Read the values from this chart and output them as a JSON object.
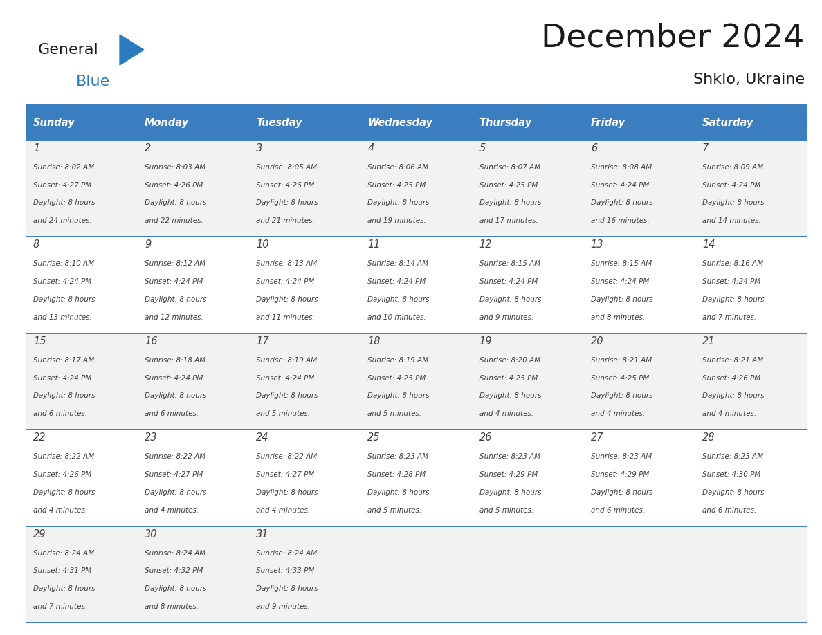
{
  "title": "December 2024",
  "subtitle": "Shklo, Ukraine",
  "header_color": "#3a7ebf",
  "header_text_color": "#ffffff",
  "background_color": "#ffffff",
  "cell_bg_even": "#f2f2f2",
  "cell_bg_odd": "#ffffff",
  "days_of_week": [
    "Sunday",
    "Monday",
    "Tuesday",
    "Wednesday",
    "Thursday",
    "Friday",
    "Saturday"
  ],
  "grid_line_color": "#3a7ebf",
  "text_color": "#404040",
  "calendar_data": [
    [
      {
        "day": 1,
        "sunrise": "8:02 AM",
        "sunset": "4:27 PM",
        "daylight_h": "8 hours",
        "daylight_m": "24 minutes"
      },
      {
        "day": 2,
        "sunrise": "8:03 AM",
        "sunset": "4:26 PM",
        "daylight_h": "8 hours",
        "daylight_m": "22 minutes"
      },
      {
        "day": 3,
        "sunrise": "8:05 AM",
        "sunset": "4:26 PM",
        "daylight_h": "8 hours",
        "daylight_m": "21 minutes"
      },
      {
        "day": 4,
        "sunrise": "8:06 AM",
        "sunset": "4:25 PM",
        "daylight_h": "8 hours",
        "daylight_m": "19 minutes"
      },
      {
        "day": 5,
        "sunrise": "8:07 AM",
        "sunset": "4:25 PM",
        "daylight_h": "8 hours",
        "daylight_m": "17 minutes"
      },
      {
        "day": 6,
        "sunrise": "8:08 AM",
        "sunset": "4:24 PM",
        "daylight_h": "8 hours",
        "daylight_m": "16 minutes"
      },
      {
        "day": 7,
        "sunrise": "8:09 AM",
        "sunset": "4:24 PM",
        "daylight_h": "8 hours",
        "daylight_m": "14 minutes"
      }
    ],
    [
      {
        "day": 8,
        "sunrise": "8:10 AM",
        "sunset": "4:24 PM",
        "daylight_h": "8 hours",
        "daylight_m": "13 minutes"
      },
      {
        "day": 9,
        "sunrise": "8:12 AM",
        "sunset": "4:24 PM",
        "daylight_h": "8 hours",
        "daylight_m": "12 minutes"
      },
      {
        "day": 10,
        "sunrise": "8:13 AM",
        "sunset": "4:24 PM",
        "daylight_h": "8 hours",
        "daylight_m": "11 minutes"
      },
      {
        "day": 11,
        "sunrise": "8:14 AM",
        "sunset": "4:24 PM",
        "daylight_h": "8 hours",
        "daylight_m": "10 minutes"
      },
      {
        "day": 12,
        "sunrise": "8:15 AM",
        "sunset": "4:24 PM",
        "daylight_h": "8 hours",
        "daylight_m": "9 minutes"
      },
      {
        "day": 13,
        "sunrise": "8:15 AM",
        "sunset": "4:24 PM",
        "daylight_h": "8 hours",
        "daylight_m": "8 minutes"
      },
      {
        "day": 14,
        "sunrise": "8:16 AM",
        "sunset": "4:24 PM",
        "daylight_h": "8 hours",
        "daylight_m": "7 minutes"
      }
    ],
    [
      {
        "day": 15,
        "sunrise": "8:17 AM",
        "sunset": "4:24 PM",
        "daylight_h": "8 hours",
        "daylight_m": "6 minutes"
      },
      {
        "day": 16,
        "sunrise": "8:18 AM",
        "sunset": "4:24 PM",
        "daylight_h": "8 hours",
        "daylight_m": "6 minutes"
      },
      {
        "day": 17,
        "sunrise": "8:19 AM",
        "sunset": "4:24 PM",
        "daylight_h": "8 hours",
        "daylight_m": "5 minutes"
      },
      {
        "day": 18,
        "sunrise": "8:19 AM",
        "sunset": "4:25 PM",
        "daylight_h": "8 hours",
        "daylight_m": "5 minutes"
      },
      {
        "day": 19,
        "sunrise": "8:20 AM",
        "sunset": "4:25 PM",
        "daylight_h": "8 hours",
        "daylight_m": "4 minutes"
      },
      {
        "day": 20,
        "sunrise": "8:21 AM",
        "sunset": "4:25 PM",
        "daylight_h": "8 hours",
        "daylight_m": "4 minutes"
      },
      {
        "day": 21,
        "sunrise": "8:21 AM",
        "sunset": "4:26 PM",
        "daylight_h": "8 hours",
        "daylight_m": "4 minutes"
      }
    ],
    [
      {
        "day": 22,
        "sunrise": "8:22 AM",
        "sunset": "4:26 PM",
        "daylight_h": "8 hours",
        "daylight_m": "4 minutes"
      },
      {
        "day": 23,
        "sunrise": "8:22 AM",
        "sunset": "4:27 PM",
        "daylight_h": "8 hours",
        "daylight_m": "4 minutes"
      },
      {
        "day": 24,
        "sunrise": "8:22 AM",
        "sunset": "4:27 PM",
        "daylight_h": "8 hours",
        "daylight_m": "4 minutes"
      },
      {
        "day": 25,
        "sunrise": "8:23 AM",
        "sunset": "4:28 PM",
        "daylight_h": "8 hours",
        "daylight_m": "5 minutes"
      },
      {
        "day": 26,
        "sunrise": "8:23 AM",
        "sunset": "4:29 PM",
        "daylight_h": "8 hours",
        "daylight_m": "5 minutes"
      },
      {
        "day": 27,
        "sunrise": "8:23 AM",
        "sunset": "4:29 PM",
        "daylight_h": "8 hours",
        "daylight_m": "6 minutes"
      },
      {
        "day": 28,
        "sunrise": "8:23 AM",
        "sunset": "4:30 PM",
        "daylight_h": "8 hours",
        "daylight_m": "6 minutes"
      }
    ],
    [
      {
        "day": 29,
        "sunrise": "8:24 AM",
        "sunset": "4:31 PM",
        "daylight_h": "8 hours",
        "daylight_m": "7 minutes"
      },
      {
        "day": 30,
        "sunrise": "8:24 AM",
        "sunset": "4:32 PM",
        "daylight_h": "8 hours",
        "daylight_m": "8 minutes"
      },
      {
        "day": 31,
        "sunrise": "8:24 AM",
        "sunset": "4:33 PM",
        "daylight_h": "8 hours",
        "daylight_m": "9 minutes"
      },
      null,
      null,
      null,
      null
    ]
  ]
}
